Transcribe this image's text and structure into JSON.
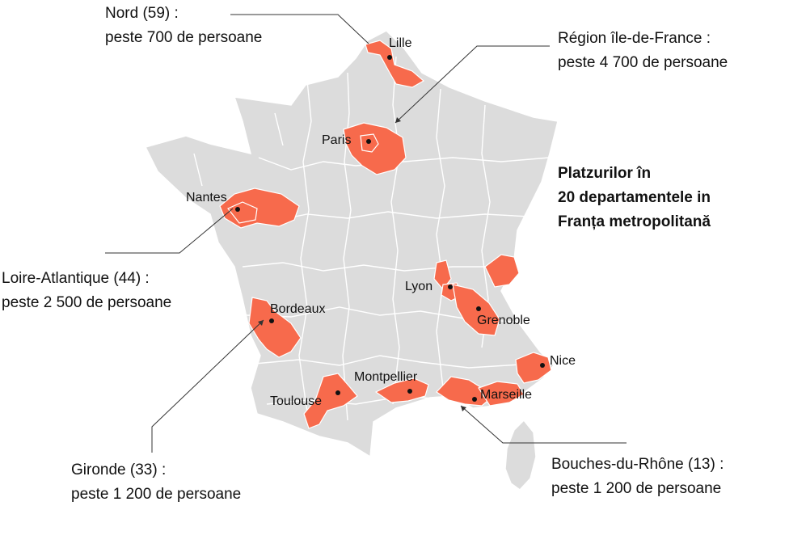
{
  "title_lines": [
    "Platzurilor în",
    "20 departamentele in",
    "Franța metropolitană"
  ],
  "callouts": {
    "nord": [
      "Nord (59) :",
      "peste 700 de persoane"
    ],
    "idf": [
      "Région île-de-France :",
      "peste 4 700 de persoane"
    ],
    "loire": [
      "Loire-Atlantique (44) :",
      "peste 2 500 de persoane"
    ],
    "gironde": [
      "Gironde (33) :",
      "peste 1 200 de persoane"
    ],
    "bdr": [
      "Bouches-du-Rhône (13) :",
      "peste 1 200 de persoane"
    ]
  },
  "cities": {
    "lille": "Lille",
    "paris": "Paris",
    "nantes": "Nantes",
    "lyon": "Lyon",
    "grenoble": "Grenoble",
    "bordeaux": "Bordeaux",
    "nice": "Nice",
    "montpellier": "Montpellier",
    "toulouse": "Toulouse",
    "marseille": "Marseille"
  },
  "colors": {
    "land": "#dcdcdc",
    "border": "#ffffff",
    "highlight": "#f76a4c",
    "leader": "#333333"
  }
}
